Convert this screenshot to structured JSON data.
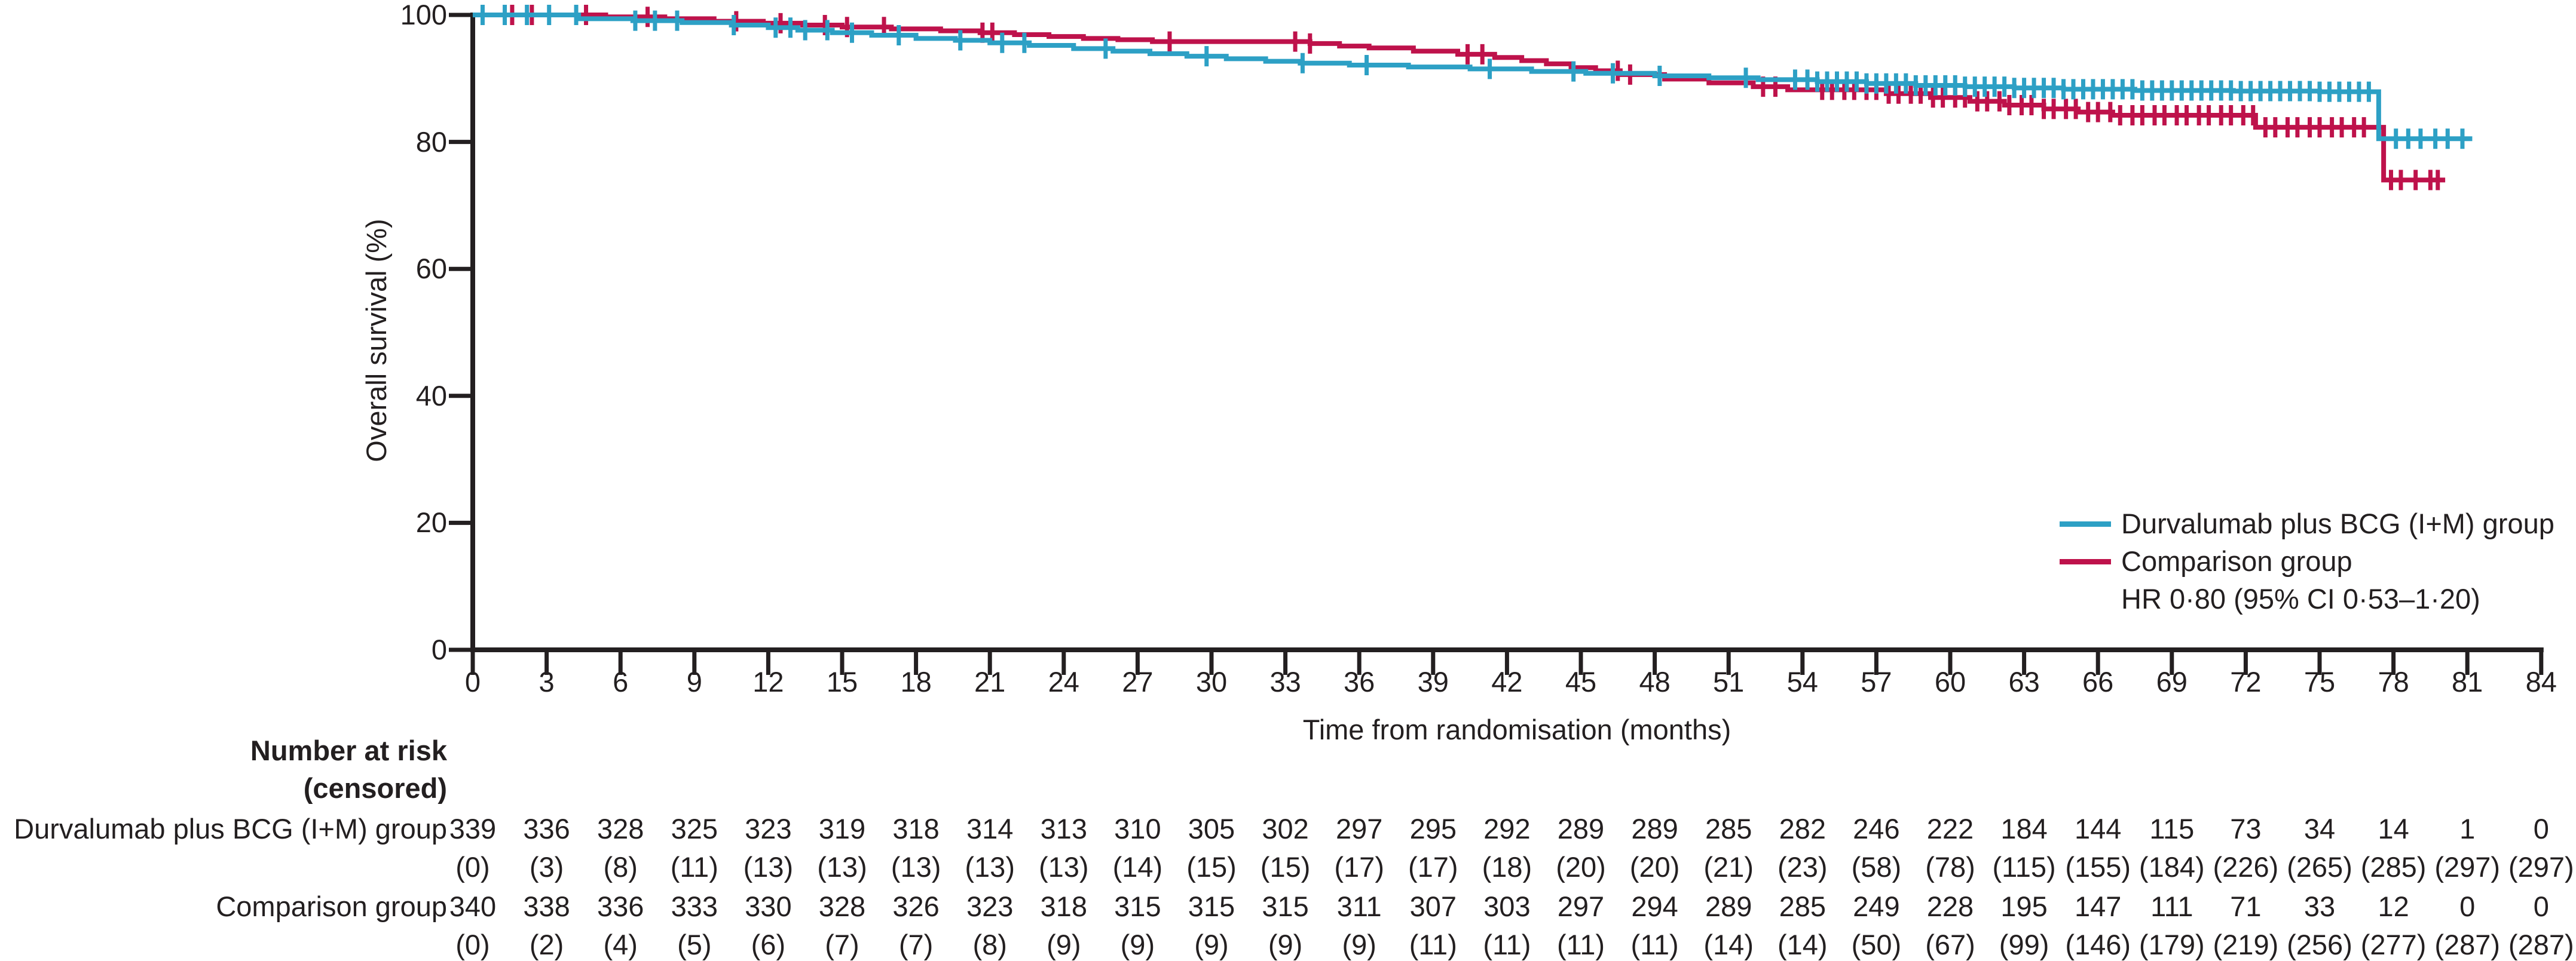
{
  "figure": {
    "background": "#ffffff",
    "text_color": "#231f20",
    "axis_color": "#231f20"
  },
  "chart_data": {
    "type": "line",
    "variant": "kaplan_meier_step",
    "title": "",
    "xlabel": "Time from randomisation (months)",
    "ylabel": "Overall survival (%)",
    "xlim": [
      0,
      84
    ],
    "ylim": [
      0,
      100
    ],
    "x_ticks": [
      0,
      3,
      6,
      9,
      12,
      15,
      18,
      21,
      24,
      27,
      30,
      33,
      36,
      39,
      42,
      45,
      48,
      51,
      54,
      57,
      60,
      63,
      66,
      69,
      72,
      75,
      78,
      81,
      84
    ],
    "y_ticks": [
      0,
      20,
      40,
      60,
      80,
      100
    ],
    "grid": false,
    "legend_position": "lower right",
    "hr_annotation": "HR 0·80 (95% CI 0·53–1·20)",
    "series": [
      {
        "name": "Durvalumab plus BCG (I+M) group",
        "color": "#2da0c5",
        "end_month": 81.2,
        "steps": [
          [
            0,
            100
          ],
          [
            4.3,
            99.4
          ],
          [
            6.5,
            99.1
          ],
          [
            8.5,
            98.8
          ],
          [
            10.5,
            98.4
          ],
          [
            12,
            98.0
          ],
          [
            13.2,
            97.6
          ],
          [
            14.6,
            97.2
          ],
          [
            16.2,
            96.8
          ],
          [
            18,
            96.3
          ],
          [
            19.6,
            96.0
          ],
          [
            21,
            95.6
          ],
          [
            22.6,
            95.2
          ],
          [
            24.4,
            94.7
          ],
          [
            26,
            94.3
          ],
          [
            27.5,
            93.9
          ],
          [
            29,
            93.5
          ],
          [
            30.6,
            93.1
          ],
          [
            32.2,
            92.7
          ],
          [
            33.6,
            92.4
          ],
          [
            35.6,
            92.1
          ],
          [
            38,
            91.8
          ],
          [
            40.5,
            91.5
          ],
          [
            43,
            91.1
          ],
          [
            45.2,
            90.8
          ],
          [
            48,
            90.4
          ],
          [
            50.2,
            90.1
          ],
          [
            52.2,
            89.8
          ],
          [
            54.6,
            89.5
          ],
          [
            56.6,
            89.2
          ],
          [
            58.6,
            88.9
          ],
          [
            60.6,
            88.7
          ],
          [
            62.6,
            88.5
          ],
          [
            64.6,
            88.3
          ],
          [
            67.5,
            88.1
          ],
          [
            71.5,
            88.0
          ],
          [
            75,
            87.9
          ],
          [
            77.4,
            80.5
          ]
        ],
        "censor_months": [
          0.4,
          1.3,
          2.2,
          3.1,
          4.2,
          6.6,
          7.4,
          8.3,
          10.6,
          12.3,
          12.9,
          13.5,
          14.4,
          15.4,
          17.3,
          19.8,
          21.5,
          22.4,
          25.7,
          29.8,
          33.7,
          36.3,
          41.3,
          44.7,
          46.3,
          48.2,
          51.7,
          53.7,
          54.2,
          54.6,
          55,
          55.4,
          55.8,
          56.2,
          56.6,
          57,
          57.4,
          57.8,
          58.2,
          58.6,
          59,
          59.4,
          59.8,
          60.2,
          60.6,
          61,
          61.4,
          61.8,
          62.2,
          62.6,
          63,
          63.4,
          63.8,
          64.2,
          64.6,
          65,
          65.4,
          65.8,
          66.2,
          66.6,
          67,
          67.4,
          67.8,
          68.2,
          68.6,
          69,
          69.4,
          69.8,
          70.2,
          70.6,
          71,
          71.4,
          71.8,
          72.2,
          72.6,
          73,
          73.4,
          73.8,
          74.2,
          74.6,
          75,
          75.4,
          75.8,
          76.2,
          76.6,
          77,
          78.1,
          78.6,
          79.1,
          79.7,
          80.2,
          80.8
        ]
      },
      {
        "name": "Comparison group",
        "color": "#be124b",
        "end_month": 80.1,
        "steps": [
          [
            0,
            100
          ],
          [
            5.4,
            99.7
          ],
          [
            7.8,
            99.4
          ],
          [
            9.8,
            99.0
          ],
          [
            11.8,
            98.7
          ],
          [
            13.4,
            98.4
          ],
          [
            15,
            98.1
          ],
          [
            17,
            97.8
          ],
          [
            19,
            97.5
          ],
          [
            20.6,
            97.2
          ],
          [
            22,
            96.9
          ],
          [
            23.4,
            96.6
          ],
          [
            24.8,
            96.3
          ],
          [
            26.2,
            96.1
          ],
          [
            27.6,
            95.8
          ],
          [
            34,
            95.5
          ],
          [
            35.2,
            95.1
          ],
          [
            36.4,
            94.8
          ],
          [
            38.2,
            94.3
          ],
          [
            40,
            93.8
          ],
          [
            41.5,
            93.3
          ],
          [
            42.6,
            92.8
          ],
          [
            43.6,
            92.3
          ],
          [
            44.6,
            91.7
          ],
          [
            45.6,
            91.2
          ],
          [
            46.6,
            90.6
          ],
          [
            48.4,
            89.9
          ],
          [
            50.2,
            89.3
          ],
          [
            52,
            88.7
          ],
          [
            53.4,
            88.2
          ],
          [
            57.4,
            87.6
          ],
          [
            59.2,
            87.0
          ],
          [
            60.8,
            86.4
          ],
          [
            62.2,
            85.8
          ],
          [
            63.8,
            85.2
          ],
          [
            65.2,
            84.7
          ],
          [
            66.6,
            84.2
          ],
          [
            72.4,
            82.3
          ],
          [
            77.6,
            74.0
          ]
        ],
        "censor_months": [
          1.6,
          2.4,
          4.6,
          7.1,
          10.7,
          12.5,
          14.3,
          15.2,
          16.7,
          20.7,
          21.1,
          28.3,
          33.4,
          34,
          40.4,
          41,
          46.5,
          47,
          52.4,
          52.9,
          54.8,
          55.2,
          55.7,
          56.1,
          56.6,
          57,
          57.5,
          57.9,
          58.4,
          58.8,
          59.3,
          59.7,
          60.2,
          60.6,
          61.1,
          61.5,
          62,
          62.4,
          62.9,
          63.3,
          63.8,
          64.2,
          64.7,
          65.1,
          65.6,
          66,
          66.5,
          66.9,
          67.4,
          67.8,
          68.3,
          68.7,
          69.2,
          69.6,
          70.1,
          70.5,
          71,
          71.4,
          71.9,
          72.3,
          72.8,
          73.2,
          73.7,
          74.1,
          74.6,
          75,
          75.5,
          75.9,
          76.4,
          76.8,
          77.9,
          78.3,
          78.9,
          79.5,
          79.8
        ]
      }
    ]
  },
  "risk_table": {
    "title_line1": "Number at risk",
    "title_line2": "(censored)",
    "months": [
      0,
      3,
      6,
      9,
      12,
      15,
      18,
      21,
      24,
      27,
      30,
      33,
      36,
      39,
      42,
      45,
      48,
      51,
      54,
      57,
      60,
      63,
      66,
      69,
      72,
      75,
      78,
      81,
      84
    ],
    "rows": [
      {
        "label": "Durvalumab plus BCG (I+M) group",
        "at_risk": [
          339,
          336,
          328,
          325,
          323,
          319,
          318,
          314,
          313,
          310,
          305,
          302,
          297,
          295,
          292,
          289,
          289,
          285,
          282,
          246,
          222,
          184,
          144,
          115,
          73,
          34,
          14,
          1,
          0
        ],
        "censored": [
          0,
          3,
          8,
          11,
          13,
          13,
          13,
          13,
          13,
          14,
          15,
          15,
          17,
          17,
          18,
          20,
          20,
          21,
          23,
          58,
          78,
          115,
          155,
          184,
          226,
          265,
          285,
          297,
          297
        ]
      },
      {
        "label": "Comparison group",
        "at_risk": [
          340,
          338,
          336,
          333,
          330,
          328,
          326,
          323,
          318,
          315,
          315,
          315,
          311,
          307,
          303,
          297,
          294,
          289,
          285,
          249,
          228,
          195,
          147,
          111,
          71,
          33,
          12,
          0,
          0
        ],
        "censored": [
          0,
          2,
          4,
          5,
          6,
          7,
          7,
          8,
          9,
          9,
          9,
          9,
          9,
          11,
          11,
          11,
          11,
          14,
          14,
          50,
          67,
          99,
          146,
          179,
          219,
          256,
          277,
          287,
          287
        ]
      }
    ]
  }
}
